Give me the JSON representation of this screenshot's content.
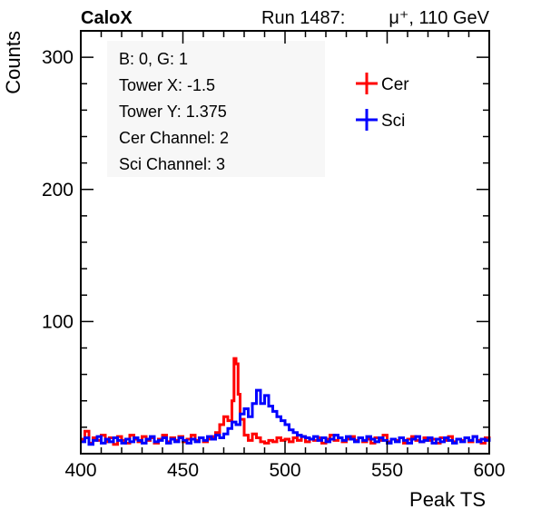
{
  "header": {
    "experiment": "CaloX",
    "run_label": "Run 1487:",
    "beam_label": "μ⁺, 110 GeV"
  },
  "info_box": {
    "lines": [
      "B: 0, G: 1",
      "Tower X: -1.5",
      "Tower Y: 1.375",
      "Cer Channel: 2",
      "Sci Channel: 3"
    ]
  },
  "chart_data": {
    "type": "line",
    "title": "",
    "xlabel": "Peak TS",
    "ylabel": "Counts",
    "xlim": [
      400,
      600
    ],
    "ylim": [
      0,
      320
    ],
    "x_ticks": [
      400,
      450,
      500,
      550,
      600
    ],
    "y_ticks": [
      100,
      200,
      300
    ],
    "grid": false,
    "legend_position": "top-right",
    "series": [
      {
        "name": "Cer",
        "color": "#ff0000",
        "points": [
          [
            400,
            11
          ],
          [
            402,
            17
          ],
          [
            404,
            8
          ],
          [
            406,
            12
          ],
          [
            408,
            10
          ],
          [
            410,
            14
          ],
          [
            412,
            9
          ],
          [
            414,
            12
          ],
          [
            416,
            7
          ],
          [
            418,
            13
          ],
          [
            420,
            10
          ],
          [
            422,
            8
          ],
          [
            424,
            14
          ],
          [
            426,
            11
          ],
          [
            428,
            9
          ],
          [
            430,
            13
          ],
          [
            432,
            10
          ],
          [
            434,
            12
          ],
          [
            436,
            8
          ],
          [
            438,
            11
          ],
          [
            440,
            14
          ],
          [
            442,
            9
          ],
          [
            444,
            12
          ],
          [
            446,
            10
          ],
          [
            448,
            13
          ],
          [
            450,
            9
          ],
          [
            452,
            11
          ],
          [
            454,
            14
          ],
          [
            456,
            10
          ],
          [
            458,
            12
          ],
          [
            460,
            9
          ],
          [
            462,
            11
          ],
          [
            464,
            13
          ],
          [
            466,
            16
          ],
          [
            468,
            22
          ],
          [
            470,
            28
          ],
          [
            472,
            25
          ],
          [
            474,
            40
          ],
          [
            475,
            72
          ],
          [
            476,
            68
          ],
          [
            477,
            45
          ],
          [
            478,
            26
          ],
          [
            480,
            14
          ],
          [
            482,
            10
          ],
          [
            484,
            15
          ],
          [
            486,
            12
          ],
          [
            488,
            9
          ],
          [
            490,
            8
          ],
          [
            492,
            10
          ],
          [
            494,
            9
          ],
          [
            496,
            12
          ],
          [
            498,
            10
          ],
          [
            500,
            11
          ],
          [
            502,
            9
          ],
          [
            504,
            12
          ],
          [
            506,
            10
          ],
          [
            508,
            13
          ],
          [
            510,
            9
          ],
          [
            512,
            11
          ],
          [
            514,
            10
          ],
          [
            516,
            12
          ],
          [
            518,
            8
          ],
          [
            520,
            11
          ],
          [
            522,
            14
          ],
          [
            524,
            10
          ],
          [
            526,
            12
          ],
          [
            528,
            9
          ],
          [
            530,
            11
          ],
          [
            532,
            13
          ],
          [
            534,
            10
          ],
          [
            536,
            12
          ],
          [
            538,
            9
          ],
          [
            540,
            11
          ],
          [
            542,
            8
          ],
          [
            544,
            12
          ],
          [
            546,
            10
          ],
          [
            548,
            14
          ],
          [
            550,
            9
          ],
          [
            552,
            11
          ],
          [
            554,
            10
          ],
          [
            556,
            12
          ],
          [
            558,
            8
          ],
          [
            560,
            11
          ],
          [
            562,
            13
          ],
          [
            564,
            10
          ],
          [
            566,
            9
          ],
          [
            568,
            12
          ],
          [
            570,
            10
          ],
          [
            572,
            11
          ],
          [
            574,
            8
          ],
          [
            576,
            12
          ],
          [
            578,
            10
          ],
          [
            580,
            13
          ],
          [
            582,
            9
          ],
          [
            584,
            11
          ],
          [
            586,
            10
          ],
          [
            588,
            12
          ],
          [
            590,
            9
          ],
          [
            592,
            13
          ],
          [
            594,
            10
          ],
          [
            596,
            8
          ],
          [
            598,
            12
          ],
          [
            600,
            11
          ]
        ]
      },
      {
        "name": "Sci",
        "color": "#0000ff",
        "points": [
          [
            400,
            9
          ],
          [
            402,
            12
          ],
          [
            404,
            7
          ],
          [
            406,
            10
          ],
          [
            408,
            13
          ],
          [
            410,
            8
          ],
          [
            412,
            11
          ],
          [
            414,
            9
          ],
          [
            416,
            12
          ],
          [
            418,
            10
          ],
          [
            420,
            8
          ],
          [
            422,
            11
          ],
          [
            424,
            9
          ],
          [
            426,
            12
          ],
          [
            428,
            10
          ],
          [
            430,
            8
          ],
          [
            432,
            11
          ],
          [
            434,
            13
          ],
          [
            436,
            9
          ],
          [
            438,
            10
          ],
          [
            440,
            12
          ],
          [
            442,
            8
          ],
          [
            444,
            11
          ],
          [
            446,
            9
          ],
          [
            448,
            12
          ],
          [
            450,
            10
          ],
          [
            452,
            8
          ],
          [
            454,
            11
          ],
          [
            456,
            9
          ],
          [
            458,
            12
          ],
          [
            460,
            10
          ],
          [
            462,
            13
          ],
          [
            464,
            11
          ],
          [
            466,
            14
          ],
          [
            468,
            12
          ],
          [
            470,
            15
          ],
          [
            472,
            19
          ],
          [
            474,
            24
          ],
          [
            476,
            22
          ],
          [
            478,
            30
          ],
          [
            480,
            34
          ],
          [
            482,
            28
          ],
          [
            484,
            38
          ],
          [
            486,
            48
          ],
          [
            488,
            38
          ],
          [
            490,
            44
          ],
          [
            492,
            36
          ],
          [
            494,
            32
          ],
          [
            496,
            28
          ],
          [
            498,
            25
          ],
          [
            500,
            22
          ],
          [
            502,
            18
          ],
          [
            504,
            16
          ],
          [
            506,
            14
          ],
          [
            508,
            13
          ],
          [
            510,
            12
          ],
          [
            512,
            11
          ],
          [
            514,
            13
          ],
          [
            516,
            10
          ],
          [
            518,
            12
          ],
          [
            520,
            9
          ],
          [
            522,
            11
          ],
          [
            524,
            14
          ],
          [
            526,
            12
          ],
          [
            528,
            10
          ],
          [
            530,
            13
          ],
          [
            532,
            11
          ],
          [
            534,
            9
          ],
          [
            536,
            12
          ],
          [
            538,
            10
          ],
          [
            540,
            13
          ],
          [
            542,
            11
          ],
          [
            544,
            9
          ],
          [
            546,
            12
          ],
          [
            548,
            10
          ],
          [
            550,
            8
          ],
          [
            552,
            11
          ],
          [
            554,
            9
          ],
          [
            556,
            12
          ],
          [
            558,
            10
          ],
          [
            560,
            8
          ],
          [
            562,
            11
          ],
          [
            564,
            13
          ],
          [
            566,
            9
          ],
          [
            568,
            10
          ],
          [
            570,
            12
          ],
          [
            572,
            8
          ],
          [
            574,
            11
          ],
          [
            576,
            9
          ],
          [
            578,
            12
          ],
          [
            580,
            10
          ],
          [
            582,
            8
          ],
          [
            584,
            11
          ],
          [
            586,
            9
          ],
          [
            588,
            12
          ],
          [
            590,
            10
          ],
          [
            592,
            13
          ],
          [
            594,
            9
          ],
          [
            596,
            11
          ],
          [
            598,
            10
          ],
          [
            600,
            12
          ]
        ]
      }
    ]
  }
}
